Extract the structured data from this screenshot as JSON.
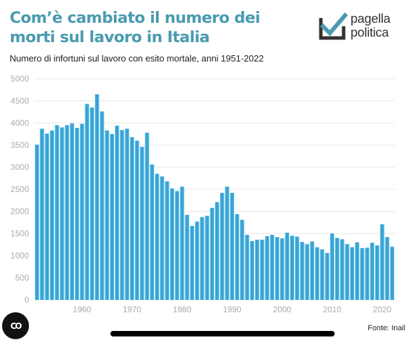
{
  "header": {
    "title": "Com’è cambiato il numero dei morti sul lavoro in Italia",
    "subtitle": "Numero di infortuni sul lavoro con esito mortale, anni 1951-2022"
  },
  "logo": {
    "line1": "pagella",
    "line2": "politica",
    "check_color": "#4a9bb0",
    "box_color": "#333333"
  },
  "footer": {
    "source": "Fonte: Inail",
    "co_button_label": "CO"
  },
  "colors": {
    "title": "#4a9bb0",
    "bar": "#3ca3d6",
    "bar_gap": "#c8f4fa",
    "grid": "#e6e6e6",
    "tick_text": "#aaaaaa"
  },
  "chart_data": {
    "type": "bar",
    "title": "Com’è cambiato il numero dei morti sul lavoro in Italia",
    "subtitle": "Numero di infortuni sul lavoro con esito mortale, anni 1951-2022",
    "xlabel": "",
    "ylabel": "",
    "ylim": [
      0,
      5000
    ],
    "yticks": [
      0,
      500,
      1000,
      1500,
      2000,
      2500,
      3000,
      3500,
      4000,
      4500,
      5000
    ],
    "xticks": [
      1960,
      1970,
      1980,
      1990,
      2000,
      2010,
      2020
    ],
    "grid": true,
    "categories": [
      1951,
      1952,
      1953,
      1954,
      1955,
      1956,
      1957,
      1958,
      1959,
      1960,
      1961,
      1962,
      1963,
      1964,
      1965,
      1966,
      1967,
      1968,
      1969,
      1970,
      1971,
      1972,
      1973,
      1974,
      1975,
      1976,
      1977,
      1978,
      1979,
      1980,
      1981,
      1982,
      1983,
      1984,
      1985,
      1986,
      1987,
      1988,
      1989,
      1990,
      1991,
      1992,
      1993,
      1994,
      1995,
      1996,
      1997,
      1998,
      1999,
      2000,
      2001,
      2002,
      2003,
      2004,
      2005,
      2006,
      2007,
      2008,
      2009,
      2010,
      2011,
      2012,
      2013,
      2014,
      2015,
      2016,
      2017,
      2018,
      2019,
      2020,
      2021,
      2022
    ],
    "values": [
      3510,
      3870,
      3760,
      3830,
      3950,
      3900,
      3950,
      3990,
      3890,
      3980,
      4430,
      4350,
      4650,
      4260,
      3830,
      3750,
      3940,
      3840,
      3870,
      3680,
      3600,
      3460,
      3780,
      3060,
      2850,
      2790,
      2680,
      2520,
      2460,
      2560,
      1920,
      1670,
      1770,
      1870,
      1900,
      2080,
      2210,
      2420,
      2560,
      2420,
      1940,
      1810,
      1470,
      1330,
      1360,
      1360,
      1440,
      1470,
      1420,
      1390,
      1520,
      1450,
      1430,
      1310,
      1260,
      1320,
      1190,
      1140,
      1060,
      1500,
      1400,
      1370,
      1260,
      1190,
      1300,
      1170,
      1180,
      1290,
      1230,
      1710,
      1420,
      1200
    ],
    "source": "Fonte: Inail"
  }
}
